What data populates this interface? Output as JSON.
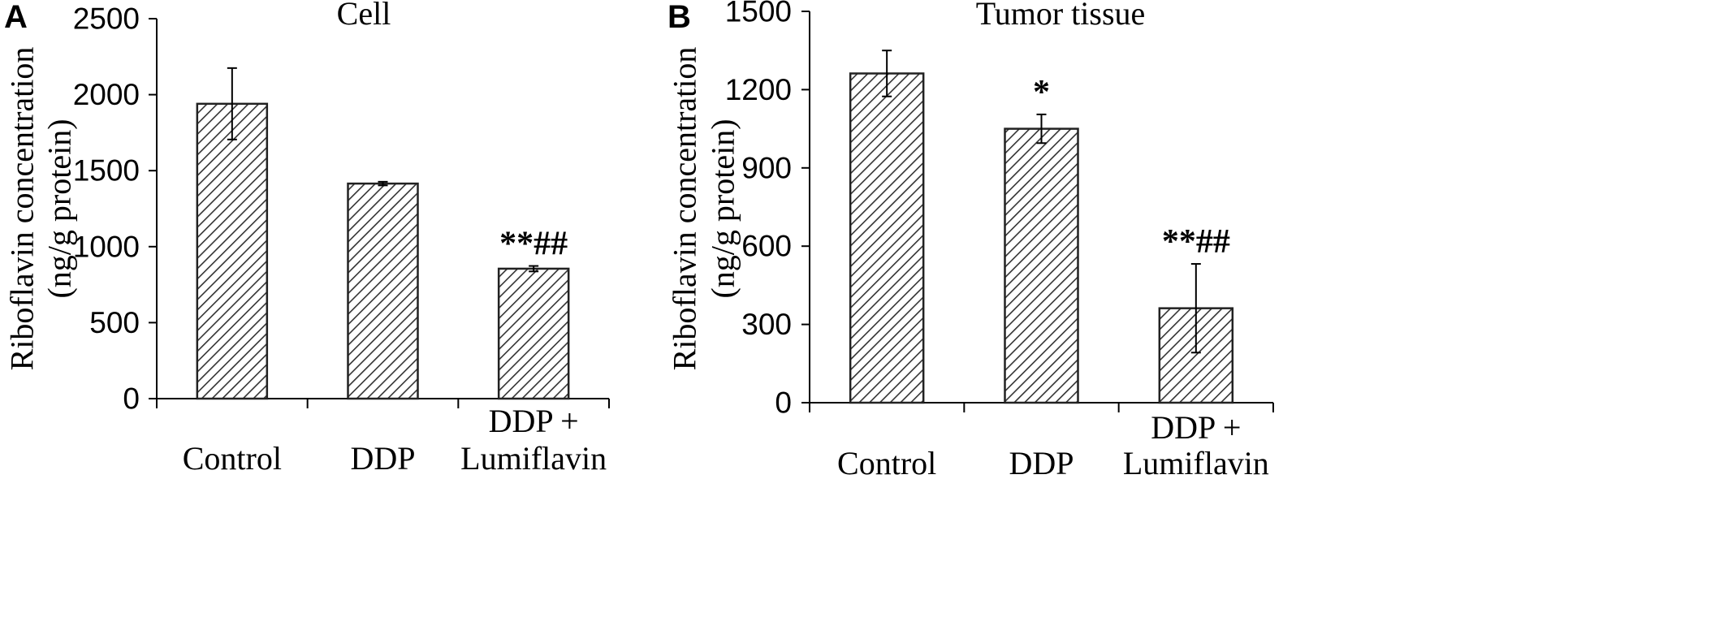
{
  "chart_data": [
    {
      "type": "bar",
      "panel": "A",
      "title": "Cell",
      "ylabel": [
        "Riboflavin concentration",
        "(ng/g protein)"
      ],
      "xlabel": "",
      "ylim": [
        0,
        2500
      ],
      "yticks": [
        "0",
        "500",
        "1000",
        "1500",
        "2000",
        "2500"
      ],
      "categories": [
        [
          "Control"
        ],
        [
          "DDP"
        ],
        [
          "DDP +",
          "Lumiflavin"
        ]
      ],
      "values": [
        1940,
        1415,
        855
      ],
      "errors": [
        235,
        12,
        18
      ],
      "annotations": [
        "",
        "",
        "**##"
      ]
    },
    {
      "type": "bar",
      "panel": "B",
      "title": "Tumor tissue",
      "ylabel": [
        "Riboflavin concentration",
        "(ng/g protein)"
      ],
      "xlabel": "",
      "ylim": [
        0,
        1500
      ],
      "yticks": [
        "0",
        "300",
        "600",
        "900",
        "1200",
        "1500"
      ],
      "categories": [
        [
          "Control"
        ],
        [
          "DDP"
        ],
        [
          "DDP +",
          "Lumiflavin"
        ]
      ],
      "values": [
        1262,
        1050,
        362
      ],
      "errors": [
        88,
        55,
        170
      ],
      "annotations": [
        "",
        "*",
        "**##"
      ]
    }
  ],
  "colors": {
    "bar_fill": "#ffffff",
    "hatch": "#333333",
    "axis": "#000000"
  }
}
